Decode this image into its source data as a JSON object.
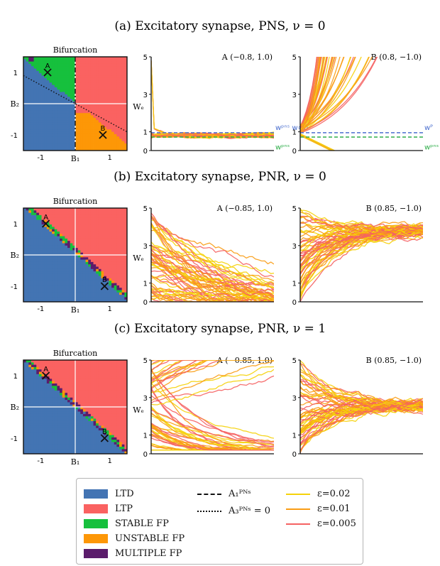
{
  "panels": [
    {
      "id": "a",
      "title": "(a) Excitatory synapse, PNS, ν = 0",
      "bifurcation_title": "Bifurcation",
      "point_a_title": "A (−0.8, 1.0)",
      "point_b_title": "B (0.8, −1.0)"
    },
    {
      "id": "b",
      "title": "(b) Excitatory synapse, PNR, ν = 0",
      "bifurcation_title": "Bifurcation",
      "point_a_title": "A (−0.85, 1.0)",
      "point_b_title": "B (0.85, −1.0)"
    },
    {
      "id": "c",
      "title": "(c) Excitatory synapse, PNR, ν = 1",
      "bifurcation_title": "Bifurcation",
      "point_a_title": "A (−0.85, 1.0)",
      "point_b_title": "B (0.85, −1.0)"
    }
  ],
  "axis_text": {
    "b1": "B₁",
    "b2": "B₂",
    "we": "Wₑ",
    "x_tick_neg": "-1",
    "x_tick_pos": "1",
    "y_tick_pos": "1",
    "y_tick_neg": "-1",
    "marker_a": "A",
    "marker_b": "B",
    "w_pns_label": "wᵖⁿˢ",
    "w_pns_w0_label": "wᵖⁿˢ w≈0",
    "w_p_label": "wᴾ"
  },
  "legend": {
    "regions": [
      {
        "label": "LTD",
        "color": "#4374b3"
      },
      {
        "label": "LTP",
        "color": "#fa6261"
      },
      {
        "label": "STABLE FP",
        "color": "#16c03d"
      },
      {
        "label": "UNSTABLE FP",
        "color": "#fd9707"
      },
      {
        "label": "MULTIPLE FP",
        "color": "#5b1c6b"
      }
    ],
    "boundaries": [
      {
        "label": "A₁ᴾᴺˢ",
        "style": "dashdot"
      },
      {
        "label": "A₃ᴾᴺˢ = 0",
        "style": "dotted"
      }
    ],
    "epsilons": [
      {
        "label": "ε=0.02",
        "color": "#f5d20a"
      },
      {
        "label": "ε=0.01",
        "color": "#fa9c14"
      },
      {
        "label": "ε=0.005",
        "color": "#f56262"
      }
    ]
  },
  "chart_data": [
    {
      "type": "heatmap",
      "panel": "a",
      "title": "Bifurcation",
      "xlabel": "B1",
      "ylabel": "B2",
      "xlim": [
        -1.5,
        1.5
      ],
      "ylim": [
        -1.5,
        1.5
      ],
      "xticks": [
        -1,
        0,
        1
      ],
      "yticks": [
        1,
        0,
        -1
      ],
      "markers": [
        {
          "label": "A",
          "x": -0.8,
          "y": 1.0
        },
        {
          "label": "B",
          "x": 0.8,
          "y": -1.0
        }
      ],
      "boundary_dashdot_x": 0.0,
      "boundary_dotted": {
        "x1": -1.5,
        "y1": 0.9,
        "x2": 1.5,
        "y2": -0.9
      }
    },
    {
      "type": "line",
      "panel": "a",
      "title": "A (−0.8, 1.0)",
      "ylabel": "We",
      "ylim": [
        0,
        5
      ],
      "yticks": [
        0,
        1,
        3,
        5
      ],
      "behavior": "converge",
      "target": 0.8,
      "spread": 0.15,
      "reference_lines": [
        {
          "y": 0.95,
          "color": "#4b6fcf"
        },
        {
          "y": 0.72,
          "color": "#2fae4a"
        }
      ],
      "series": [
        {
          "name": "ε=0.02"
        },
        {
          "name": "ε=0.01"
        },
        {
          "name": "ε=0.005"
        }
      ]
    },
    {
      "type": "line",
      "panel": "a",
      "title": "B (0.8, −1.0)",
      "ylabel": "We",
      "ylim": [
        0,
        5
      ],
      "yticks": [
        0,
        1,
        3,
        5
      ],
      "behavior": "diverge",
      "threshold": 0.95,
      "reference_lines": [
        {
          "y": 0.95,
          "color": "#4b6fcf"
        },
        {
          "y": 0.72,
          "color": "#2fae4a"
        }
      ],
      "series": [
        {
          "name": "ε=0.02"
        },
        {
          "name": "ε=0.01"
        },
        {
          "name": "ε=0.005"
        }
      ]
    },
    {
      "type": "heatmap",
      "panel": "b",
      "title": "Bifurcation",
      "xlabel": "B1",
      "ylabel": "B2",
      "xlim": [
        -1.5,
        1.5
      ],
      "ylim": [
        -1.5,
        1.5
      ],
      "xticks": [
        -1,
        0,
        1
      ],
      "yticks": [
        1,
        0,
        -1
      ],
      "markers": [
        {
          "label": "A",
          "x": -0.85,
          "y": 1.0
        },
        {
          "label": "B",
          "x": 0.85,
          "y": -1.0
        }
      ]
    },
    {
      "type": "line",
      "panel": "b",
      "title": "A (−0.85, 1.0)",
      "ylabel": "We",
      "ylim": [
        0,
        5
      ],
      "yticks": [
        0,
        1,
        3,
        5
      ],
      "behavior": "decay",
      "target": 0.3,
      "series": [
        {
          "name": "ε=0.02"
        },
        {
          "name": "ε=0.01"
        },
        {
          "name": "ε=0.005"
        }
      ]
    },
    {
      "type": "line",
      "panel": "b",
      "title": "B (0.85, −1.0)",
      "ylabel": "We",
      "ylim": [
        0,
        5
      ],
      "yticks": [
        0,
        1,
        3,
        5
      ],
      "behavior": "converge",
      "target": 3.8,
      "spread": 0.35,
      "series": [
        {
          "name": "ε=0.02"
        },
        {
          "name": "ε=0.01"
        },
        {
          "name": "ε=0.005"
        }
      ]
    },
    {
      "type": "heatmap",
      "panel": "c",
      "title": "Bifurcation",
      "xlabel": "B1",
      "ylabel": "B2",
      "xlim": [
        -1.5,
        1.5
      ],
      "ylim": [
        -1.5,
        1.5
      ],
      "xticks": [
        -1,
        0,
        1
      ],
      "yticks": [
        1,
        0,
        -1
      ],
      "markers": [
        {
          "label": "A",
          "x": -0.85,
          "y": 1.0
        },
        {
          "label": "B",
          "x": 0.85,
          "y": -1.0
        }
      ]
    },
    {
      "type": "line",
      "panel": "c",
      "title": "A (−0.85, 1.0)",
      "ylabel": "We",
      "ylim": [
        0,
        5
      ],
      "yticks": [
        0,
        1,
        3,
        5
      ],
      "behavior": "split",
      "target": 0.4,
      "series": [
        {
          "name": "ε=0.02"
        },
        {
          "name": "ε=0.01"
        },
        {
          "name": "ε=0.005"
        }
      ]
    },
    {
      "type": "line",
      "panel": "c",
      "title": "B (0.85, −1.0)",
      "ylabel": "We",
      "ylim": [
        0,
        5
      ],
      "yticks": [
        0,
        1,
        3,
        5
      ],
      "behavior": "converge",
      "target": 2.6,
      "spread": 0.3,
      "series": [
        {
          "name": "ε=0.02"
        },
        {
          "name": "ε=0.01"
        },
        {
          "name": "ε=0.005"
        }
      ]
    }
  ]
}
